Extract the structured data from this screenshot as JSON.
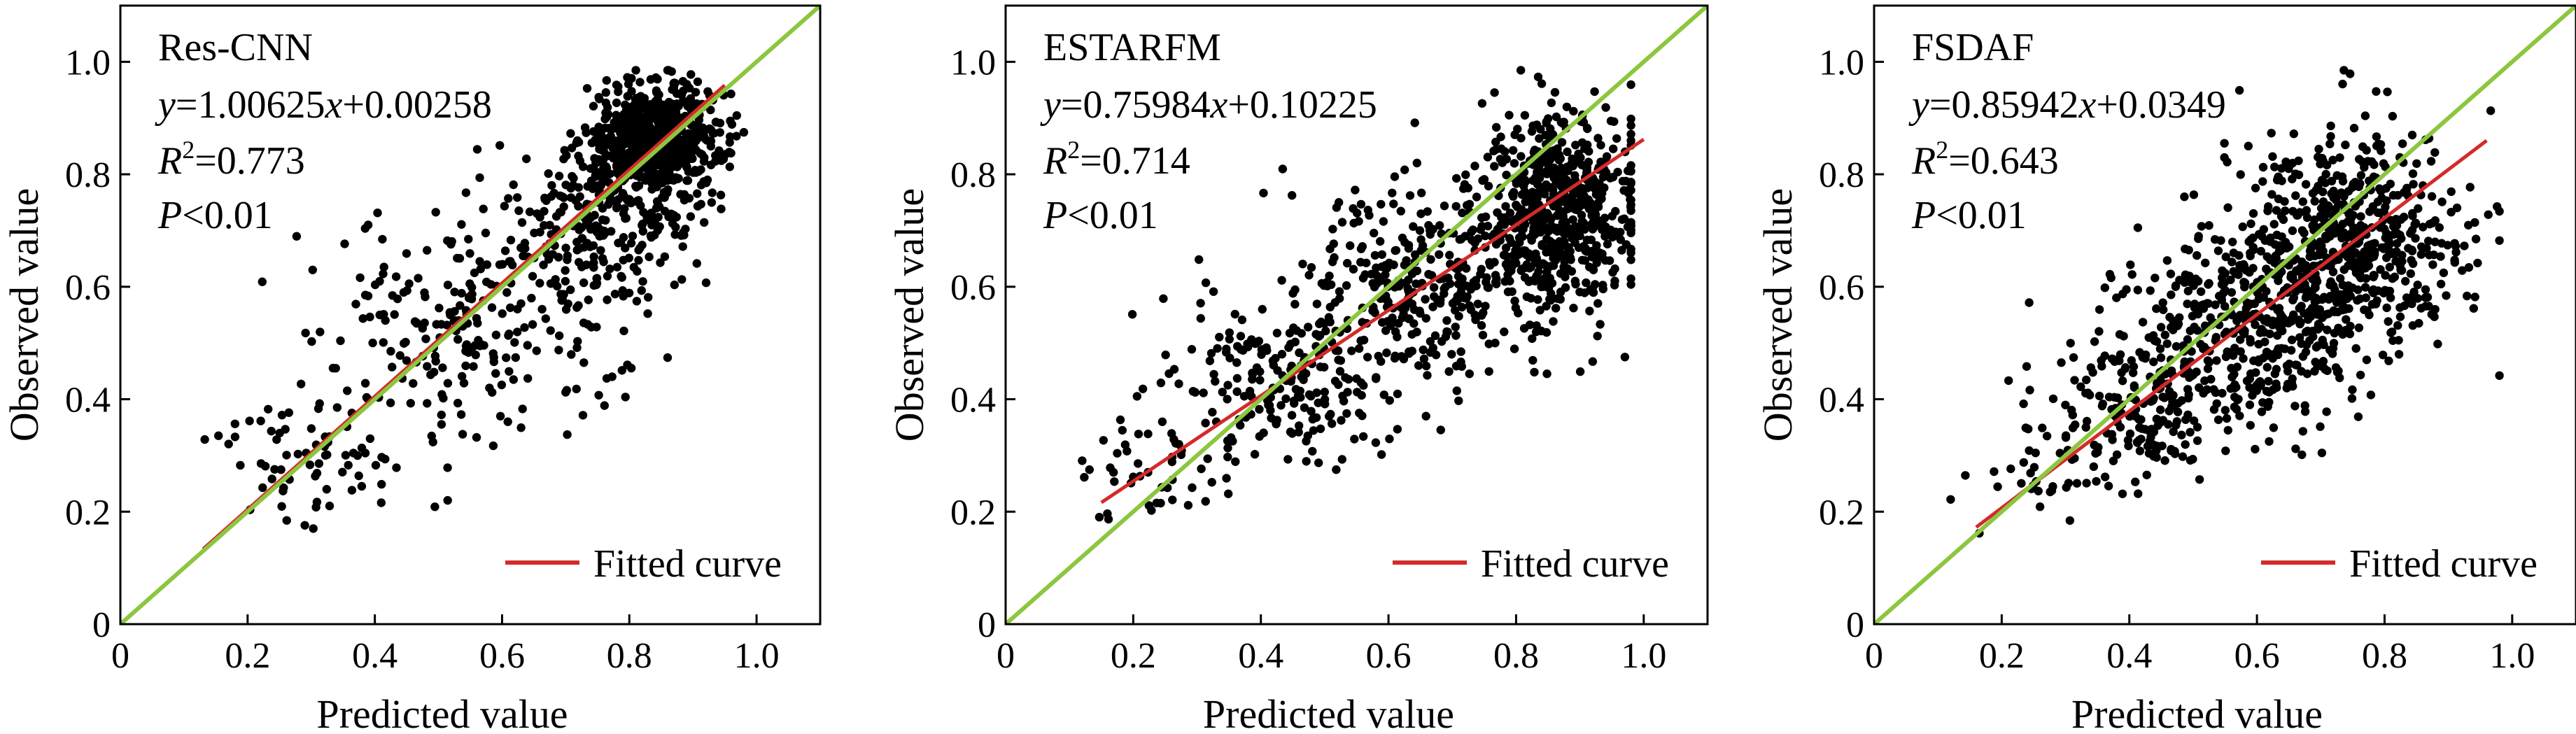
{
  "chart_data": [
    {
      "type": "scatter",
      "title": "",
      "model": "Res-CNN",
      "xlabel": "Predicted value",
      "ylabel": "Observed value",
      "xlim": [
        0,
        1.1
      ],
      "ylim": [
        0,
        1.1
      ],
      "xticks": [
        0,
        0.2,
        0.4,
        0.6,
        0.8,
        1.0
      ],
      "xtick_labels": [
        "0",
        "0.2",
        "0.4",
        "0.6",
        "0.8",
        "1.0"
      ],
      "yticks": [
        0,
        0.2,
        0.4,
        0.6,
        0.8,
        1.0
      ],
      "ytick_labels": [
        "0",
        "0.2",
        "0.4",
        "0.6",
        "0.8",
        "1.0"
      ],
      "grid": false,
      "annotations": {
        "equation": {
          "y": "y",
          "eq": "=1.00625",
          "x": "x",
          "rest": "+0.00258"
        },
        "r2": {
          "r": "R",
          "sup": "2",
          "rest": "=0.773"
        },
        "p": {
          "p": "P",
          "rest": "<0.01"
        }
      },
      "fit": {
        "slope": 1.00625,
        "intercept": 0.00258,
        "x_range": [
          0.13,
          0.95
        ],
        "color": "#d42a2a"
      },
      "reference_line": {
        "slope": 1,
        "intercept": 0,
        "color": "#8cc63f"
      },
      "legend": {
        "label": "Fitted curve",
        "placement": "bottom-right"
      },
      "sample_clusters": [
        {
          "cx": 0.84,
          "cy": 0.86,
          "sx": 0.055,
          "sy": 0.05,
          "n": 650
        },
        {
          "cx": 0.77,
          "cy": 0.72,
          "sx": 0.07,
          "sy": 0.08,
          "n": 250
        },
        {
          "cx": 0.55,
          "cy": 0.52,
          "sx": 0.12,
          "sy": 0.1,
          "n": 230
        },
        {
          "cx": 0.3,
          "cy": 0.3,
          "sx": 0.08,
          "sy": 0.06,
          "n": 70
        }
      ],
      "point_color": "#000000"
    },
    {
      "type": "scatter",
      "title": "",
      "model": "ESTARFM",
      "xlabel": "Predicted value",
      "ylabel": "Observed value",
      "xlim": [
        0,
        1.1
      ],
      "ylim": [
        0,
        1.1
      ],
      "xticks": [
        0,
        0.2,
        0.4,
        0.6,
        0.8,
        1.0
      ],
      "xtick_labels": [
        "0",
        "0.2",
        "0.4",
        "0.6",
        "0.8",
        "1.0"
      ],
      "yticks": [
        0,
        0.2,
        0.4,
        0.6,
        0.8,
        1.0
      ],
      "ytick_labels": [
        "0",
        "0.2",
        "0.4",
        "0.6",
        "0.8",
        "1.0"
      ],
      "grid": false,
      "annotations": {
        "equation": {
          "y": "y",
          "eq": "=0.75984",
          "x": "x",
          "rest": "+0.10225"
        },
        "r2": {
          "r": "R",
          "sup": "2",
          "rest": "=0.714"
        },
        "p": {
          "p": "P",
          "rest": "<0.01"
        }
      },
      "fit": {
        "slope": 0.75984,
        "intercept": 0.10225,
        "x_range": [
          0.15,
          1.0
        ],
        "color": "#d42a2a"
      },
      "reference_line": {
        "slope": 1,
        "intercept": 0,
        "color": "#8cc63f"
      },
      "legend": {
        "label": "Fitted curve",
        "placement": "bottom-right"
      },
      "sample_clusters": [
        {
          "cx": 0.87,
          "cy": 0.74,
          "sx": 0.06,
          "sy": 0.09,
          "n": 600
        },
        {
          "cx": 0.65,
          "cy": 0.6,
          "sx": 0.1,
          "sy": 0.09,
          "n": 350
        },
        {
          "cx": 0.42,
          "cy": 0.42,
          "sx": 0.09,
          "sy": 0.08,
          "n": 200
        },
        {
          "cx": 0.24,
          "cy": 0.26,
          "sx": 0.06,
          "sy": 0.05,
          "n": 40
        }
      ],
      "point_color": "#000000"
    },
    {
      "type": "scatter",
      "title": "",
      "model": "FSDAF",
      "xlabel": "Predicted value",
      "ylabel": "Observed value",
      "xlim": [
        0,
        1.1
      ],
      "ylim": [
        0,
        1.1
      ],
      "xticks": [
        0,
        0.2,
        0.4,
        0.6,
        0.8,
        1.0
      ],
      "xtick_labels": [
        "0",
        "0.2",
        "0.4",
        "0.6",
        "0.8",
        "1.0"
      ],
      "yticks": [
        0,
        0.2,
        0.4,
        0.6,
        0.8,
        1.0
      ],
      "ytick_labels": [
        "0",
        "0.2",
        "0.4",
        "0.6",
        "0.8",
        "1.0"
      ],
      "grid": false,
      "annotations": {
        "equation": {
          "y": "y",
          "eq": "=0.85942",
          "x": "x",
          "rest": "+0.0349"
        },
        "r2": {
          "r": "R",
          "sup": "2",
          "rest": "=0.643"
        },
        "p": {
          "p": "P",
          "rest": "<0.01"
        }
      },
      "fit": {
        "slope": 0.85942,
        "intercept": 0.0349,
        "x_range": [
          0.16,
          0.96
        ],
        "color": "#d42a2a"
      },
      "reference_line": {
        "slope": 1,
        "intercept": 0,
        "color": "#8cc63f"
      },
      "legend": {
        "label": "Fitted curve",
        "placement": "bottom-right"
      },
      "sample_clusters": [
        {
          "cx": 0.75,
          "cy": 0.68,
          "sx": 0.09,
          "sy": 0.1,
          "n": 550
        },
        {
          "cx": 0.58,
          "cy": 0.52,
          "sx": 0.1,
          "sy": 0.09,
          "n": 450
        },
        {
          "cx": 0.4,
          "cy": 0.38,
          "sx": 0.07,
          "sy": 0.06,
          "n": 150
        },
        {
          "cx": 0.25,
          "cy": 0.25,
          "sx": 0.05,
          "sy": 0.04,
          "n": 30
        }
      ],
      "point_color": "#000000"
    }
  ]
}
